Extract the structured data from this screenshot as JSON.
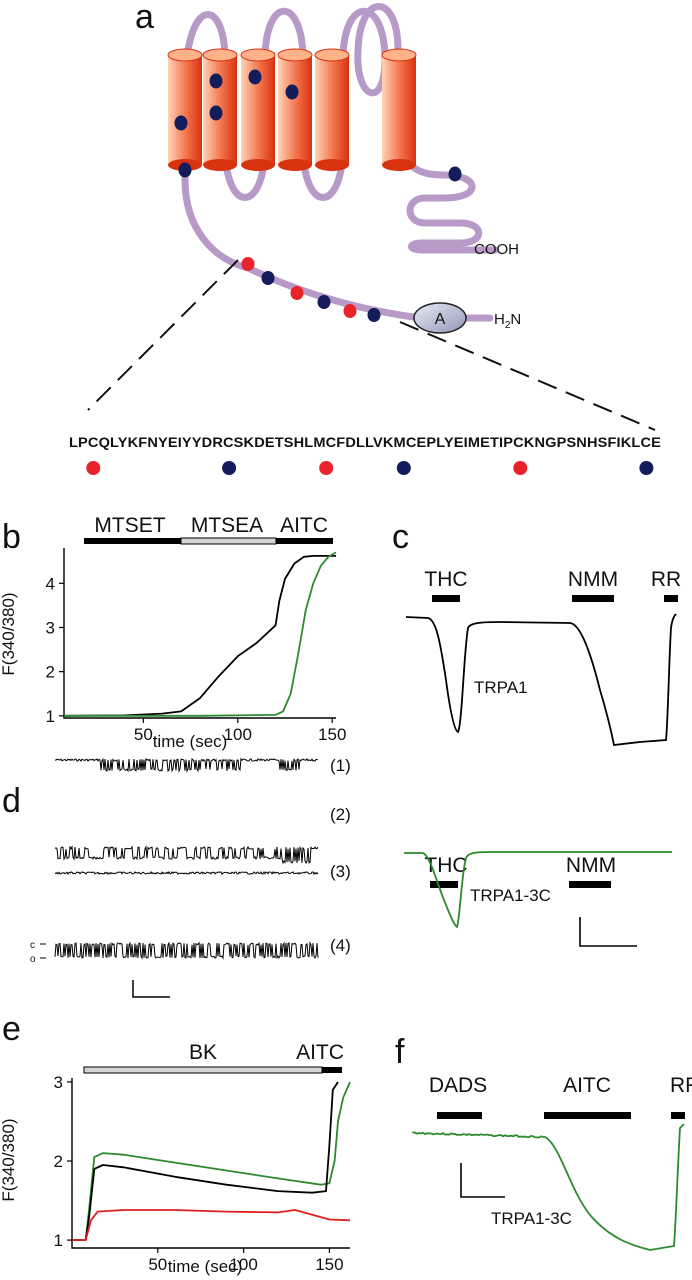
{
  "colors": {
    "membrane_loop": "#b89ac8",
    "helix_dark": "#dd3a1a",
    "helix_light": "#ffc9a8",
    "residue_red": "#e8232b",
    "residue_blue": "#141c5c",
    "ankyrin_fill": "#b8bfd8",
    "wildtype_trace": "#000000",
    "mutant_trace": "#2d8a2d",
    "red_trace": "#e01e1e",
    "bar_gray": "#d4d4d4"
  },
  "panel_a": {
    "letter": "a",
    "cooh_label": "COOH",
    "nterm_h": "H",
    "nterm_sub": "2",
    "nterm_n": "N",
    "ankyrin_label": "A",
    "sequence": "LPCQLYKFNYEIYYDRCSKDETSHLMCFDLLVKMCEPLYEIMETIPCKNGPSNHSFIKLCE",
    "sequence_dots": [
      "red",
      "blue",
      "red",
      "blue",
      "red",
      "blue"
    ]
  },
  "panel_b": {
    "letter": "b",
    "bars": [
      "MTSET",
      "MTSEA",
      "AITC"
    ],
    "chart_data": {
      "type": "line",
      "xlabel": "time (sec)",
      "ylabel": "F(340/380)",
      "x_ticks": [
        50,
        100,
        150
      ],
      "y_ticks": [
        1,
        2,
        3,
        4
      ],
      "xlim": [
        8,
        152
      ],
      "ylim": [
        0.95,
        4.8
      ],
      "series": [
        {
          "color": "#000000",
          "x": [
            8,
            40,
            60,
            70,
            80,
            90,
            100,
            110,
            115,
            120,
            122,
            125,
            130,
            135,
            140,
            152
          ],
          "y": [
            1.0,
            1.01,
            1.05,
            1.1,
            1.4,
            1.9,
            2.35,
            2.65,
            2.85,
            3.05,
            3.6,
            4.1,
            4.45,
            4.6,
            4.62,
            4.62
          ]
        },
        {
          "color": "#2d8a2d",
          "x": [
            8,
            80,
            120,
            124,
            128,
            132,
            136,
            140,
            144,
            148,
            152
          ],
          "y": [
            1.0,
            1.0,
            1.02,
            1.1,
            1.5,
            2.4,
            3.4,
            4.0,
            4.4,
            4.6,
            4.7
          ]
        }
      ]
    }
  },
  "panel_c": {
    "letter": "c",
    "top_bars": [
      "THC",
      "NMM",
      "RR"
    ],
    "top_label": "TRPA1",
    "bottom_bars": [
      "THC",
      "NMM"
    ],
    "bottom_label": "TRPA1-3C"
  },
  "panel_d": {
    "letter": "d",
    "traces": [
      "(1)",
      "(2)",
      "(3)",
      "(4)"
    ],
    "closed_label": "c",
    "open_label": "o"
  },
  "panel_e": {
    "letter": "e",
    "bars": [
      "BK",
      "AITC"
    ],
    "chart_data": {
      "type": "line",
      "xlabel": "time (sec)",
      "ylabel": "F(340/380)",
      "x_ticks": [
        50,
        100,
        150
      ],
      "y_ticks": [
        1,
        2,
        3
      ],
      "xlim": [
        0,
        162
      ],
      "ylim": [
        0.9,
        3.05
      ],
      "series": [
        {
          "color": "#2d8a2d",
          "x": [
            0,
            8,
            10,
            13,
            18,
            30,
            60,
            90,
            120,
            145,
            150,
            153,
            155,
            158,
            162
          ],
          "y": [
            1.0,
            1.0,
            1.4,
            2.05,
            2.1,
            2.08,
            1.98,
            1.88,
            1.78,
            1.7,
            1.72,
            2.0,
            2.5,
            2.8,
            3.0
          ]
        },
        {
          "color": "#000000",
          "x": [
            0,
            8,
            10,
            13,
            18,
            30,
            60,
            90,
            120,
            140,
            148,
            150,
            152,
            155
          ],
          "y": [
            1.0,
            1.0,
            1.3,
            1.9,
            1.95,
            1.92,
            1.8,
            1.7,
            1.62,
            1.6,
            1.62,
            2.2,
            2.9,
            3.0
          ]
        },
        {
          "color": "#e01e1e",
          "x": [
            0,
            8,
            11,
            15,
            30,
            60,
            90,
            120,
            130,
            140,
            150,
            162
          ],
          "y": [
            1.0,
            1.0,
            1.25,
            1.36,
            1.38,
            1.38,
            1.36,
            1.35,
            1.38,
            1.32,
            1.26,
            1.25
          ]
        }
      ]
    }
  },
  "panel_f": {
    "letter": "f",
    "bars": [
      "DADS",
      "AITC",
      "RR"
    ],
    "trace_label": "TRPA1-3C"
  }
}
